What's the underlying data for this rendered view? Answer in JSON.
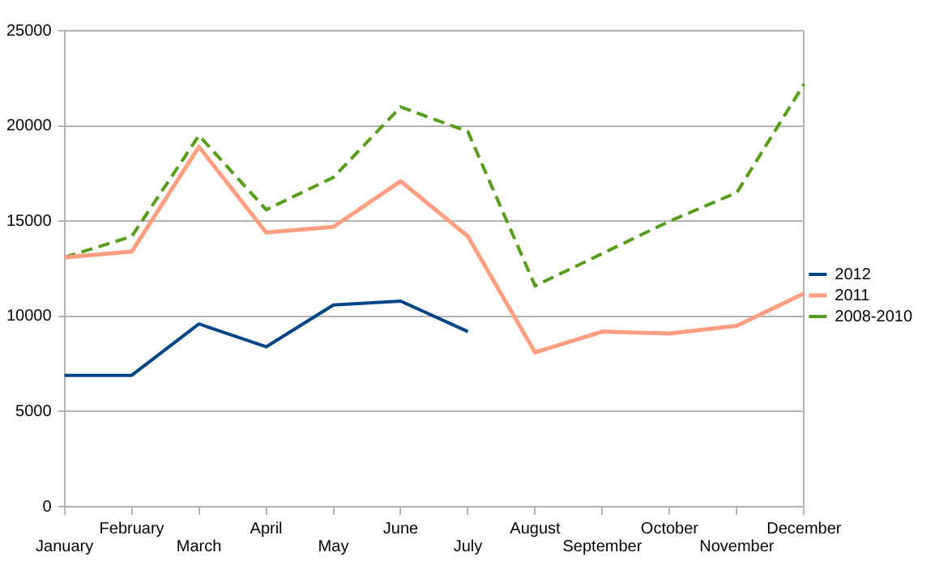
{
  "chart_data": {
    "type": "line",
    "categories": [
      "January",
      "February",
      "March",
      "April",
      "May",
      "June",
      "July",
      "August",
      "September",
      "October",
      "November",
      "December"
    ],
    "series": [
      {
        "name": "2012",
        "color": "#004586",
        "line_style": "solid",
        "values": [
          6900,
          6900,
          9600,
          8400,
          10600,
          10800,
          9200,
          null,
          null,
          null,
          null,
          null
        ]
      },
      {
        "name": "2011",
        "color": "#ff9e80",
        "line_style": "solid",
        "values": [
          13100,
          13400,
          18900,
          14400,
          14700,
          17100,
          14200,
          8100,
          9200,
          9100,
          9500,
          11200
        ]
      },
      {
        "name": "2008-2010",
        "color": "#579d1c",
        "line_style": "dashed",
        "values": [
          13100,
          14200,
          19500,
          15600,
          17300,
          21000,
          19700,
          11600,
          13300,
          15000,
          16500,
          22200
        ]
      }
    ],
    "ylim": [
      0,
      25000
    ],
    "yticks": [
      0,
      5000,
      10000,
      15000,
      20000,
      25000
    ],
    "grid": "y",
    "legend": "right",
    "marker": "none"
  }
}
